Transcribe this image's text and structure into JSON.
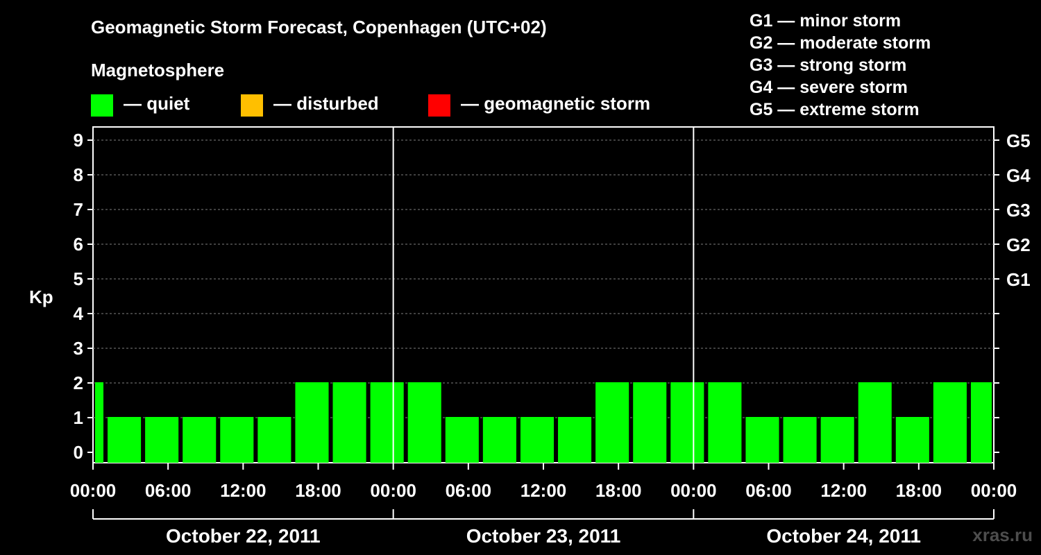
{
  "title": "Geomagnetic Storm Forecast, Copenhagen (UTC+02)",
  "magnetosphere": {
    "label": "Magnetosphere",
    "legend": [
      {
        "text": "— quiet",
        "color": "#00ff00"
      },
      {
        "text": "— disturbed",
        "color": "#ffbf00"
      },
      {
        "text": "— geomagnetic storm",
        "color": "#ff0000"
      }
    ]
  },
  "storm_scale": [
    "G1 — minor storm",
    "G2 — moderate storm",
    "G3 — strong storm",
    "G4 — severe storm",
    "G5 — extreme storm"
  ],
  "watermark": "xras.ru",
  "chart_data": {
    "type": "bar",
    "ylabel": "Kp",
    "ylim": [
      0,
      9
    ],
    "yticks": [
      0,
      1,
      2,
      3,
      4,
      5,
      6,
      7,
      8,
      9
    ],
    "right_axis_labels": [
      {
        "kp": 5,
        "label": "G1"
      },
      {
        "kp": 6,
        "label": "G2"
      },
      {
        "kp": 7,
        "label": "G3"
      },
      {
        "kp": 8,
        "label": "G4"
      },
      {
        "kp": 9,
        "label": "G5"
      }
    ],
    "x_tick_labels": [
      "00:00",
      "06:00",
      "12:00",
      "18:00",
      "00:00",
      "06:00",
      "12:00",
      "18:00",
      "00:00",
      "06:00",
      "12:00",
      "18:00",
      "00:00"
    ],
    "days": [
      "October 22, 2011",
      "October 23, 2011",
      "October 24, 2011"
    ],
    "grid": "dashed horizontal",
    "bar_color": "#00ff00",
    "bins": [
      {
        "start_hour": 0,
        "end_hour": 1,
        "kp": 2
      },
      {
        "start_hour": 1,
        "end_hour": 4,
        "kp": 1
      },
      {
        "start_hour": 4,
        "end_hour": 7,
        "kp": 1
      },
      {
        "start_hour": 7,
        "end_hour": 10,
        "kp": 1
      },
      {
        "start_hour": 10,
        "end_hour": 13,
        "kp": 1
      },
      {
        "start_hour": 13,
        "end_hour": 16,
        "kp": 1
      },
      {
        "start_hour": 16,
        "end_hour": 19,
        "kp": 2
      },
      {
        "start_hour": 19,
        "end_hour": 22,
        "kp": 2
      },
      {
        "start_hour": 22,
        "end_hour": 25,
        "kp": 2
      },
      {
        "start_hour": 25,
        "end_hour": 28,
        "kp": 2
      },
      {
        "start_hour": 28,
        "end_hour": 31,
        "kp": 1
      },
      {
        "start_hour": 31,
        "end_hour": 34,
        "kp": 1
      },
      {
        "start_hour": 34,
        "end_hour": 37,
        "kp": 1
      },
      {
        "start_hour": 37,
        "end_hour": 40,
        "kp": 1
      },
      {
        "start_hour": 40,
        "end_hour": 43,
        "kp": 2
      },
      {
        "start_hour": 43,
        "end_hour": 46,
        "kp": 2
      },
      {
        "start_hour": 46,
        "end_hour": 49,
        "kp": 2
      },
      {
        "start_hour": 49,
        "end_hour": 52,
        "kp": 2
      },
      {
        "start_hour": 52,
        "end_hour": 55,
        "kp": 1
      },
      {
        "start_hour": 55,
        "end_hour": 58,
        "kp": 1
      },
      {
        "start_hour": 58,
        "end_hour": 61,
        "kp": 1
      },
      {
        "start_hour": 61,
        "end_hour": 64,
        "kp": 2
      },
      {
        "start_hour": 64,
        "end_hour": 67,
        "kp": 1
      },
      {
        "start_hour": 67,
        "end_hour": 70,
        "kp": 2
      },
      {
        "start_hour": 70,
        "end_hour": 72,
        "kp": 2
      }
    ]
  }
}
